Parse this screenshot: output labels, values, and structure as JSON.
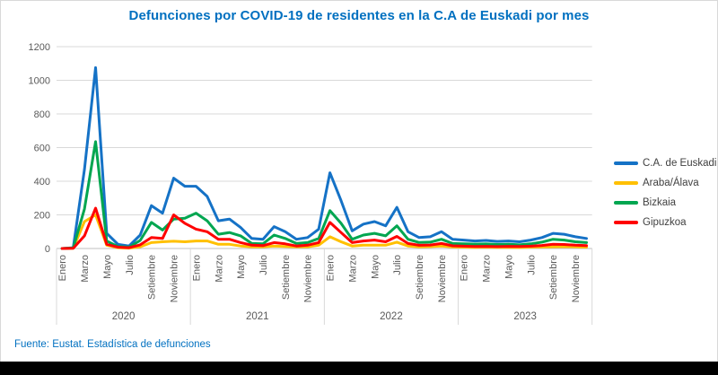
{
  "title": "Defunciones por COVID-19  de residentes en la C.A de Euskadi por mes",
  "footer": "Fuente: Eustat. Estadística de defunciones",
  "colors": {
    "title_text": "#0070C0",
    "footer_text": "#0070C0",
    "axis_text": "#595959",
    "gridline": "#D9D9D9",
    "axis_line": "#BFBFBF",
    "bottom_bar": "#000000"
  },
  "chart_data": {
    "type": "line",
    "title": "Defunciones por COVID-19  de residentes en la C.A de Euskadi por mes",
    "xlabel": "",
    "ylabel": "",
    "ylim": [
      0,
      1200
    ],
    "y_ticks": [
      0,
      200,
      400,
      600,
      800,
      1000,
      1200
    ],
    "grid": true,
    "legend_position": "right",
    "years": [
      "2020",
      "2021",
      "2022",
      "2023"
    ],
    "months_per_year": 12,
    "month_tick_labels": [
      "Enero",
      "Marzo",
      "Mayo",
      "Julio",
      "Setiembre",
      "Noviembre"
    ],
    "series": [
      {
        "name": "C.A. de Euskadi",
        "color": "#1572C6",
        "values": [
          0,
          5,
          470,
          1075,
          90,
          25,
          15,
          80,
          255,
          210,
          418,
          370,
          370,
          310,
          165,
          175,
          125,
          60,
          55,
          130,
          100,
          55,
          65,
          115,
          450,
          285,
          105,
          145,
          160,
          135,
          245,
          100,
          65,
          70,
          100,
          55,
          50,
          45,
          48,
          42,
          45,
          40,
          50,
          65,
          90,
          85,
          70,
          60
        ]
      },
      {
        "name": "Araba/Álava",
        "color": "#FFC000",
        "values": [
          0,
          1,
          160,
          200,
          20,
          5,
          2,
          10,
          35,
          40,
          43,
          40,
          45,
          45,
          25,
          25,
          15,
          10,
          10,
          15,
          12,
          10,
          10,
          20,
          70,
          40,
          15,
          20,
          20,
          20,
          38,
          15,
          10,
          11,
          15,
          9,
          8,
          7,
          8,
          7,
          7,
          6,
          8,
          9,
          10,
          11,
          10,
          8
        ]
      },
      {
        "name": "Bizkaia",
        "color": "#00A650",
        "values": [
          0,
          3,
          235,
          635,
          45,
          12,
          8,
          48,
          155,
          110,
          175,
          180,
          210,
          165,
          85,
          95,
          75,
          30,
          28,
          80,
          60,
          30,
          35,
          60,
          225,
          150,
          55,
          80,
          90,
          75,
          135,
          55,
          36,
          38,
          55,
          30,
          28,
          26,
          27,
          24,
          25,
          22,
          28,
          38,
          55,
          50,
          40,
          35
        ]
      },
      {
        "name": "Gipuzkoa",
        "color": "#FF0000",
        "values": [
          0,
          1,
          75,
          240,
          25,
          8,
          5,
          22,
          65,
          60,
          200,
          150,
          115,
          100,
          55,
          55,
          35,
          20,
          17,
          35,
          28,
          15,
          20,
          35,
          155,
          95,
          35,
          45,
          50,
          40,
          72,
          30,
          19,
          21,
          30,
          16,
          14,
          12,
          13,
          11,
          13,
          12,
          14,
          18,
          25,
          24,
          20,
          17
        ]
      }
    ]
  }
}
